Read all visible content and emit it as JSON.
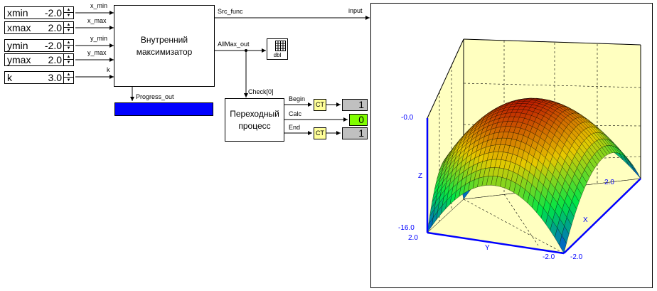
{
  "inputs": [
    {
      "label": "xmin",
      "value": "-2.0",
      "port": "x_min"
    },
    {
      "label": "xmax",
      "value": "2.0",
      "port": "x_max"
    },
    {
      "label": "ymin",
      "value": "-2.0",
      "port": "y_min"
    },
    {
      "label": "ymax",
      "value": "2.0",
      "port": "y_max"
    },
    {
      "label": "k",
      "value": "3.0",
      "port": "k"
    }
  ],
  "maximizer": {
    "line1": "Внутренний",
    "line2": "максимизатор"
  },
  "signals": {
    "src_func": "Src_func",
    "allmax_out": "AllMax_out",
    "progress_out": "Progress_out",
    "check": "Check[0]",
    "input": "input"
  },
  "dbl_label": "dbl",
  "transition": {
    "line1": "Переходный",
    "line2": "процесс"
  },
  "outputs": [
    {
      "port": "Begin",
      "ct": "CT",
      "value": "1",
      "color": "#c0c0c0"
    },
    {
      "port": "Calc",
      "value": "0",
      "color": "#80ff00"
    },
    {
      "port": "End",
      "ct": "CT",
      "value": "1",
      "color": "#c0c0c0"
    }
  ],
  "progress": {
    "fraction": 1.0,
    "color": "#0000ff"
  },
  "plot": {
    "z_top": "-0.0",
    "z_bottom": "-16.0",
    "z_axis": "Z",
    "y_axis": "Y",
    "x_axis": "X",
    "y_start": "2.0",
    "y_end": "-2.0",
    "x_near": "-2.0",
    "x_far": "2.0",
    "panel_color": "#ffffc0",
    "axis_color": "#0000ff"
  }
}
